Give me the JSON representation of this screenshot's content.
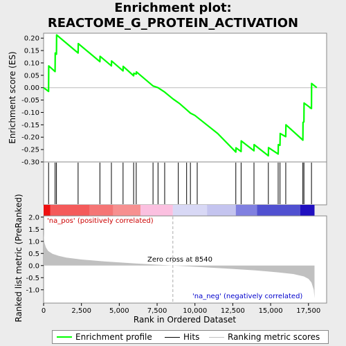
{
  "title_line1": "Enrichment plot:",
  "title_line2": "REACTOME_G_PROTEIN_ACTIVATION",
  "colors": {
    "enrichment": "#00ff00",
    "hits": "#000000",
    "metric_fill": "#c0c0c0",
    "zero_line": "#aaaaaa"
  },
  "chart_data": {
    "type": "line",
    "xlabel": "Rank in Ordered Dataset",
    "xlim": [
      0,
      18700
    ],
    "x_ticks": [
      0,
      2500,
      5000,
      7500,
      10000,
      12500,
      15000,
      17500
    ],
    "x_tick_labels": [
      "0",
      "2,500",
      "5,000",
      "7,500",
      "10,000",
      "12,500",
      "15,000",
      "17,500"
    ],
    "es_panel": {
      "ylabel": "Enrichment score (ES)",
      "ylim": [
        -0.3,
        0.22
      ],
      "y_ticks": [
        0.2,
        0.15,
        0.1,
        0.05,
        0.0,
        -0.05,
        -0.1,
        -0.15,
        -0.2,
        -0.25,
        -0.3
      ],
      "y_tick_labels": [
        "0.20",
        "0.15",
        "0.10",
        "0.05",
        "0.00",
        "-0.05",
        "-0.10",
        "-0.15",
        "-0.20",
        "-0.25",
        "-0.30"
      ],
      "series": [
        {
          "name": "Enrichment profile",
          "x": [
            0,
            330,
            340,
            760,
            770,
            850,
            860,
            2280,
            2290,
            3720,
            3730,
            4480,
            4490,
            5250,
            5260,
            5950,
            5960,
            6120,
            6130,
            7230,
            7560,
            8000,
            8540,
            9000,
            9500,
            9700,
            10000,
            10200,
            11500,
            12700,
            12710,
            13050,
            13060,
            13900,
            13910,
            14850,
            14860,
            15500,
            15510,
            15620,
            15630,
            16000,
            16010,
            17130,
            17140,
            17200,
            17210,
            17600,
            17610,
            17700,
            17710,
            18050
          ],
          "y": [
            0.0,
            -0.015,
            0.088,
            0.065,
            0.14,
            0.135,
            0.213,
            0.14,
            0.178,
            0.105,
            0.127,
            0.088,
            0.108,
            0.068,
            0.086,
            0.048,
            0.058,
            0.055,
            0.064,
            0.007,
            0.0,
            -0.018,
            -0.045,
            -0.065,
            -0.092,
            -0.103,
            -0.112,
            -0.122,
            -0.185,
            -0.26,
            -0.243,
            -0.258,
            -0.215,
            -0.255,
            -0.23,
            -0.275,
            -0.242,
            -0.268,
            -0.23,
            -0.233,
            -0.185,
            -0.198,
            -0.15,
            -0.212,
            -0.14,
            -0.138,
            -0.062,
            -0.08,
            -0.082,
            -0.084,
            0.017,
            0.0
          ]
        }
      ]
    },
    "hits": [
      330,
      760,
      850,
      2280,
      3720,
      4480,
      5250,
      5950,
      6120,
      7230,
      7560,
      8000,
      8900,
      9450,
      9700,
      10150,
      12700,
      13050,
      13900,
      14850,
      15500,
      15620,
      16000,
      17130,
      17200,
      17700
    ],
    "gradient_bar": {
      "segments": [
        {
          "start": 0,
          "end": 450,
          "color": "#ee1010"
        },
        {
          "start": 450,
          "end": 3050,
          "color": "#f45a5a"
        },
        {
          "start": 3050,
          "end": 4600,
          "color": "#f57575"
        },
        {
          "start": 4600,
          "end": 6400,
          "color": "#f79090"
        },
        {
          "start": 6400,
          "end": 8540,
          "color": "#fbc0e0"
        },
        {
          "start": 8540,
          "end": 10800,
          "color": "#d8d8f5"
        },
        {
          "start": 10800,
          "end": 12700,
          "color": "#c4c4ef"
        },
        {
          "start": 12700,
          "end": 14100,
          "color": "#8080e0"
        },
        {
          "start": 14100,
          "end": 16950,
          "color": "#5050d0"
        },
        {
          "start": 16950,
          "end": 17900,
          "color": "#2010c0"
        }
      ]
    },
    "metric_panel": {
      "ylabel": "Ranked list metric (PreRanked)",
      "ylim": [
        -1.55,
        2.05
      ],
      "y_ticks": [
        2.0,
        1.5,
        1.0,
        0.5,
        0.0,
        -0.5,
        -1.0
      ],
      "y_tick_labels": [
        "2.0",
        "1.5",
        "1.0",
        "0.5",
        "0.0",
        "-0.5",
        "-1.0"
      ],
      "x": [
        0,
        50,
        150,
        300,
        600,
        1000,
        1500,
        2500,
        4000,
        6000,
        8540,
        10000,
        12000,
        14000,
        15500,
        16500,
        17200,
        17500,
        17700,
        17850,
        17900
      ],
      "y": [
        1.3,
        0.95,
        0.75,
        0.6,
        0.48,
        0.4,
        0.33,
        0.25,
        0.17,
        0.09,
        0.0,
        -0.05,
        -0.12,
        -0.2,
        -0.28,
        -0.35,
        -0.45,
        -0.55,
        -0.7,
        -1.0,
        -1.35
      ],
      "zero_cross_label": "Zero cross at 8540",
      "zero_cross": 8540,
      "pos_label": "'na_pos' (positively correlated)",
      "neg_label": "'na_neg' (negatively correlated)"
    },
    "legend": [
      "Enrichment profile",
      "Hits",
      "Ranking metric scores"
    ],
    "legend_placement": "bottom"
  }
}
